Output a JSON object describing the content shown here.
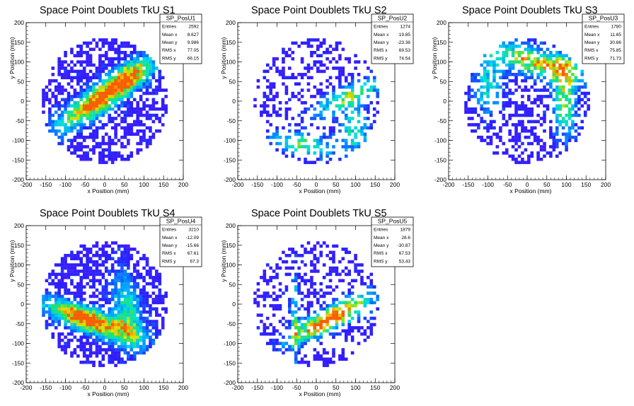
{
  "chart_data": [
    {
      "type": "heatmap",
      "title": "Space Point Doublets TkU S1",
      "xlabel": "x Position (mm)",
      "ylabel": "y Position (mm)",
      "xlim": [
        -200,
        200
      ],
      "ylim": [
        -200,
        200
      ],
      "xticks": [
        -200,
        -150,
        -100,
        -50,
        0,
        50,
        100,
        150,
        200
      ],
      "yticks": [
        -200,
        -150,
        -100,
        -50,
        0,
        50,
        100,
        150,
        200
      ],
      "grid": false,
      "stats": {
        "name": "SP_PosU1",
        "rows": [
          {
            "key": "Entries",
            "value": "2592"
          },
          {
            "key": "Mean x",
            "value": "8.627"
          },
          {
            "key": "Mean y",
            "value": "9.986"
          },
          {
            "key": "RMS x",
            "value": "77.05"
          },
          {
            "key": "RMS y",
            "value": "66.15"
          }
        ]
      },
      "hotspots": [
        {
          "x": -5,
          "y": 10,
          "sx": 90,
          "sy": 22,
          "angle": 34,
          "w": 0.95
        },
        {
          "x": 70,
          "y": 75,
          "sx": 40,
          "sy": 22,
          "angle": 30,
          "w": 0.35
        }
      ],
      "fill": 0.78,
      "seed": 11
    },
    {
      "type": "heatmap",
      "title": "Space Point Doublets TkU S2",
      "xlabel": "x Position (mm)",
      "ylabel": "y Position (mm)",
      "xlim": [
        -200,
        200
      ],
      "ylim": [
        -200,
        200
      ],
      "xticks": [
        -200,
        -150,
        -100,
        -50,
        0,
        50,
        100,
        150,
        200
      ],
      "yticks": [
        -200,
        -150,
        -100,
        -50,
        0,
        50,
        100,
        150,
        200
      ],
      "grid": false,
      "stats": {
        "name": "SP_PosU2",
        "rows": [
          {
            "key": "Entries",
            "value": "1274"
          },
          {
            "key": "Mean x",
            "value": "19.85"
          },
          {
            "key": "Mean y",
            "value": "-23.36"
          },
          {
            "key": "RMS x",
            "value": "69.53"
          },
          {
            "key": "RMS y",
            "value": "74.54"
          }
        ]
      },
      "hotspots": [
        {
          "x": 80,
          "y": 10,
          "sx": 70,
          "sy": 18,
          "angle": 25,
          "w": 0.55
        },
        {
          "x": -30,
          "y": -110,
          "sx": 60,
          "sy": 18,
          "angle": -10,
          "w": 0.5
        },
        {
          "x": 95,
          "y": -70,
          "sx": 25,
          "sy": 40,
          "angle": 0,
          "w": 0.45
        }
      ],
      "fill": 0.45,
      "seed": 23
    },
    {
      "type": "heatmap",
      "title": "Space Point Doublets TkU S3",
      "xlabel": "x Position (mm)",
      "ylabel": "y Position (mm)",
      "xlim": [
        -200,
        200
      ],
      "ylim": [
        -200,
        200
      ],
      "xticks": [
        -200,
        -150,
        -100,
        -50,
        0,
        50,
        100,
        150,
        200
      ],
      "yticks": [
        -200,
        -150,
        -100,
        -50,
        0,
        50,
        100,
        150,
        200
      ],
      "grid": false,
      "stats": {
        "name": "SP_PosU3",
        "rows": [
          {
            "key": "Entries",
            "value": "1780"
          },
          {
            "key": "Mean x",
            "value": "11.65"
          },
          {
            "key": "Mean y",
            "value": "30.66"
          },
          {
            "key": "RMS x",
            "value": "75.85"
          },
          {
            "key": "RMS y",
            "value": "71.73"
          }
        ]
      },
      "hotspots": [
        {
          "x": 20,
          "y": 100,
          "sx": 90,
          "sy": 22,
          "angle": -15,
          "w": 0.75
        },
        {
          "x": 95,
          "y": 10,
          "sx": 20,
          "sy": 70,
          "angle": 0,
          "w": 0.6
        },
        {
          "x": -100,
          "y": 40,
          "sx": 25,
          "sy": 50,
          "angle": 0,
          "w": 0.4
        }
      ],
      "fill": 0.55,
      "seed": 37
    },
    {
      "type": "heatmap",
      "title": "Space Point Doublets TkU S4",
      "xlabel": "x Position (mm)",
      "ylabel": "y Position (mm)",
      "xlim": [
        -200,
        200
      ],
      "ylim": [
        -200,
        200
      ],
      "xticks": [
        -200,
        -150,
        -100,
        -50,
        0,
        50,
        100,
        150,
        200
      ],
      "yticks": [
        -200,
        -150,
        -100,
        -50,
        0,
        50,
        100,
        150,
        200
      ],
      "grid": false,
      "stats": {
        "name": "SP_PosU4",
        "rows": [
          {
            "key": "Entries",
            "value": "3210"
          },
          {
            "key": "Mean x",
            "value": "-12.09"
          },
          {
            "key": "Mean y",
            "value": "-15.66"
          },
          {
            "key": "RMS x",
            "value": "67.61"
          },
          {
            "key": "RMS y",
            "value": "67.3"
          }
        ]
      },
      "hotspots": [
        {
          "x": -40,
          "y": -40,
          "sx": 80,
          "sy": 20,
          "angle": -20,
          "w": 1.0
        },
        {
          "x": 60,
          "y": -20,
          "sx": 25,
          "sy": 70,
          "angle": 10,
          "w": 0.45
        }
      ],
      "fill": 0.88,
      "seed": 51
    },
    {
      "type": "heatmap",
      "title": "Space Point Doublets TkU S5",
      "xlabel": "x Position (mm)",
      "ylabel": "y Position (mm)",
      "xlim": [
        -200,
        200
      ],
      "ylim": [
        -200,
        200
      ],
      "xticks": [
        -200,
        -150,
        -100,
        -50,
        0,
        50,
        100,
        150,
        200
      ],
      "yticks": [
        -200,
        -150,
        -100,
        -50,
        0,
        50,
        100,
        150,
        200
      ],
      "grid": false,
      "stats": {
        "name": "SP_PosU5",
        "rows": [
          {
            "key": "Entries",
            "value": "1879"
          },
          {
            "key": "Mean x",
            "value": "28.6"
          },
          {
            "key": "Mean y",
            "value": "-30.87"
          },
          {
            "key": "RMS x",
            "value": "67.53"
          },
          {
            "key": "RMS y",
            "value": "53.43"
          }
        ]
      },
      "hotspots": [
        {
          "x": 40,
          "y": -35,
          "sx": 75,
          "sy": 18,
          "angle": 28,
          "w": 1.0
        },
        {
          "x": -55,
          "y": -40,
          "sx": 8,
          "sy": 75,
          "angle": 0,
          "w": 0.45
        }
      ],
      "fill": 0.5,
      "seed": 67
    }
  ]
}
